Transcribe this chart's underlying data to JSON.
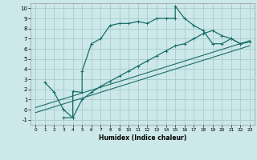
{
  "xlabel": "Humidex (Indice chaleur)",
  "bg_color": "#cce8e8",
  "grid_color": "#aacccc",
  "line_color": "#1a6e6a",
  "xlim": [
    -0.5,
    23.5
  ],
  "ylim": [
    -1.5,
    10.5
  ],
  "xticks": [
    0,
    1,
    2,
    3,
    4,
    5,
    6,
    7,
    8,
    9,
    10,
    11,
    12,
    13,
    14,
    15,
    16,
    17,
    18,
    19,
    20,
    21,
    22,
    23
  ],
  "yticks": [
    -1,
    0,
    1,
    2,
    3,
    4,
    5,
    6,
    7,
    8,
    9,
    10
  ],
  "line1_x": [
    1,
    2,
    3,
    4,
    4,
    5,
    5,
    6,
    7,
    8,
    9,
    10,
    11,
    12,
    13,
    14,
    15,
    15,
    16,
    17,
    18,
    19,
    20,
    21,
    22,
    23
  ],
  "line1_y": [
    2.7,
    1.7,
    0.0,
    -0.8,
    1.8,
    1.7,
    3.8,
    6.5,
    7.0,
    8.3,
    8.5,
    8.5,
    8.7,
    8.5,
    9.0,
    9.0,
    9.0,
    10.2,
    9.0,
    8.3,
    7.8,
    6.5,
    6.5,
    7.0,
    6.5,
    6.7
  ],
  "line2_x": [
    3,
    4,
    5,
    6,
    7,
    8,
    9,
    10,
    11,
    12,
    13,
    14,
    15,
    16,
    17,
    18,
    19,
    20,
    21,
    22,
    23
  ],
  "line2_y": [
    -0.8,
    -0.8,
    1.0,
    1.7,
    2.3,
    2.8,
    3.3,
    3.8,
    4.3,
    4.8,
    5.3,
    5.8,
    6.3,
    6.5,
    7.0,
    7.5,
    7.8,
    7.3,
    7.0,
    6.5,
    6.7
  ],
  "line3_x": [
    0,
    23
  ],
  "line3_y": [
    0.2,
    6.8
  ],
  "line4_x": [
    0,
    23
  ],
  "line4_y": [
    -0.3,
    6.3
  ]
}
